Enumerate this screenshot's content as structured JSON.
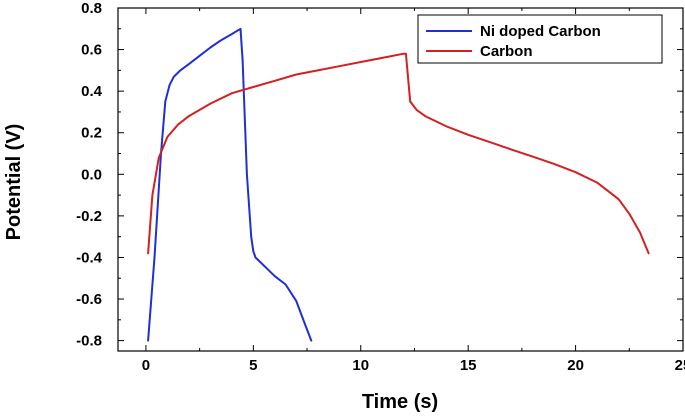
{
  "chart_data": {
    "type": "line",
    "xlabel": "Time (s)",
    "ylabel": "Potential (V)",
    "xlim": [
      -1.3,
      25
    ],
    "ylim": [
      -0.85,
      0.8
    ],
    "x_ticks": [
      0,
      5,
      10,
      15,
      20,
      25
    ],
    "x_tick_labels": [
      "0",
      "5",
      "10",
      "15",
      "20",
      "25"
    ],
    "y_ticks": [
      0.8,
      0.6,
      0.4,
      0.2,
      0.0,
      -0.2,
      -0.4,
      -0.6,
      -0.8
    ],
    "y_tick_labels": [
      "0.8",
      "0.6",
      "0.4",
      "0.2",
      "0.0",
      "-0.2",
      "-0.4",
      "-0.6",
      "-0.8"
    ],
    "grid": false,
    "legend_position": "top-right",
    "series": [
      {
        "name": "Ni doped Carbon",
        "color": "#1f2fd6",
        "x": [
          0.1,
          0.4,
          0.7,
          0.9,
          1.1,
          1.3,
          1.6,
          2.0,
          2.5,
          3.0,
          3.5,
          4.0,
          4.4,
          4.5,
          4.7,
          4.9,
          5.0,
          5.1,
          5.3,
          5.6,
          6.0,
          6.5,
          7.0,
          7.4,
          7.7
        ],
        "y": [
          -0.8,
          -0.4,
          0.1,
          0.35,
          0.43,
          0.47,
          0.5,
          0.53,
          0.57,
          0.61,
          0.645,
          0.675,
          0.7,
          0.55,
          0.0,
          -0.3,
          -0.37,
          -0.4,
          -0.42,
          -0.45,
          -0.49,
          -0.53,
          -0.61,
          -0.72,
          -0.8
        ]
      },
      {
        "name": "Carbon",
        "color": "#d42020",
        "x": [
          0.1,
          0.3,
          0.6,
          1.0,
          1.5,
          2.0,
          3.0,
          4.0,
          5.0,
          6.0,
          7.0,
          8.0,
          9.0,
          10.0,
          11.0,
          12.0,
          12.1,
          12.3,
          12.6,
          13.0,
          14.0,
          15.0,
          16.0,
          17.0,
          18.0,
          19.0,
          20.0,
          21.0,
          22.0,
          22.5,
          23.0,
          23.4
        ],
        "y": [
          -0.38,
          -0.1,
          0.08,
          0.18,
          0.24,
          0.28,
          0.34,
          0.39,
          0.42,
          0.45,
          0.48,
          0.5,
          0.52,
          0.54,
          0.56,
          0.58,
          0.58,
          0.35,
          0.31,
          0.28,
          0.23,
          0.19,
          0.155,
          0.12,
          0.085,
          0.05,
          0.01,
          -0.04,
          -0.12,
          -0.19,
          -0.28,
          -0.38
        ]
      }
    ]
  }
}
